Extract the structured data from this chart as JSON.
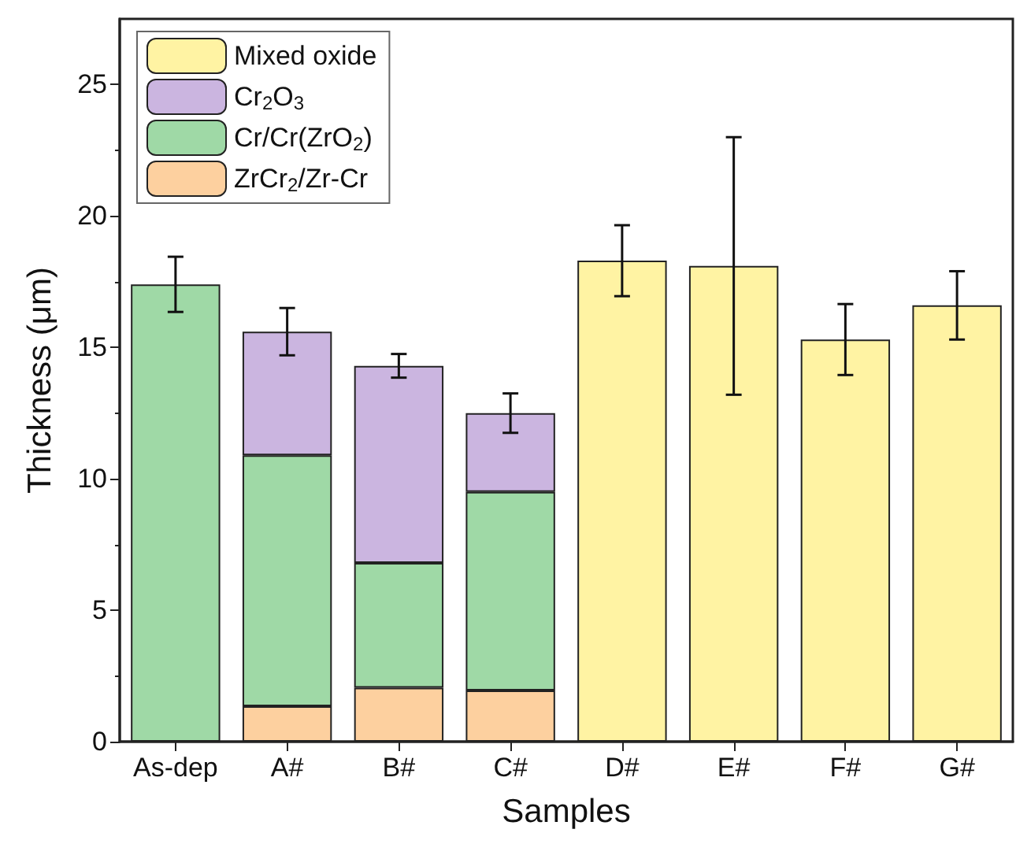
{
  "chart_data": {
    "type": "bar",
    "stacked": true,
    "xlabel": "Samples",
    "ylabel": "Thickness (μm)",
    "categories": [
      "As-dep",
      "A#",
      "B#",
      "C#",
      "D#",
      "E#",
      "F#",
      "G#"
    ],
    "series": [
      {
        "name": "ZrCr$_{2}$/Zr-Cr",
        "color": "#fdd09f",
        "values": [
          null,
          1.35,
          2.05,
          1.95,
          null,
          null,
          null,
          null
        ]
      },
      {
        "name": "Cr/Cr(ZrO$_{2}$)",
        "color": "#9fd9a6",
        "values": [
          17.4,
          9.55,
          4.75,
          7.55,
          null,
          null,
          null,
          null
        ],
        "errors": [
          1.05,
          null,
          null,
          null,
          null,
          null,
          null,
          null
        ]
      },
      {
        "name": "Cr$_{2}$O$_{3}$",
        "color": "#cbb5e0",
        "values": [
          null,
          4.7,
          7.5,
          3.0,
          null,
          null,
          null,
          null
        ],
        "errors": [
          null,
          0.9,
          0.45,
          0.75,
          null,
          null,
          null,
          null
        ]
      },
      {
        "name": "Mixed oxide",
        "color": "#fff3a3",
        "values": [
          null,
          null,
          null,
          null,
          18.3,
          18.1,
          15.3,
          16.6
        ],
        "errors": [
          null,
          null,
          null,
          null,
          1.35,
          4.9,
          1.35,
          1.3
        ]
      }
    ],
    "ylim": [
      0,
      27.5
    ],
    "yticks": [
      0,
      5,
      10,
      15,
      20,
      25
    ],
    "grid": false,
    "legend": "top left"
  }
}
